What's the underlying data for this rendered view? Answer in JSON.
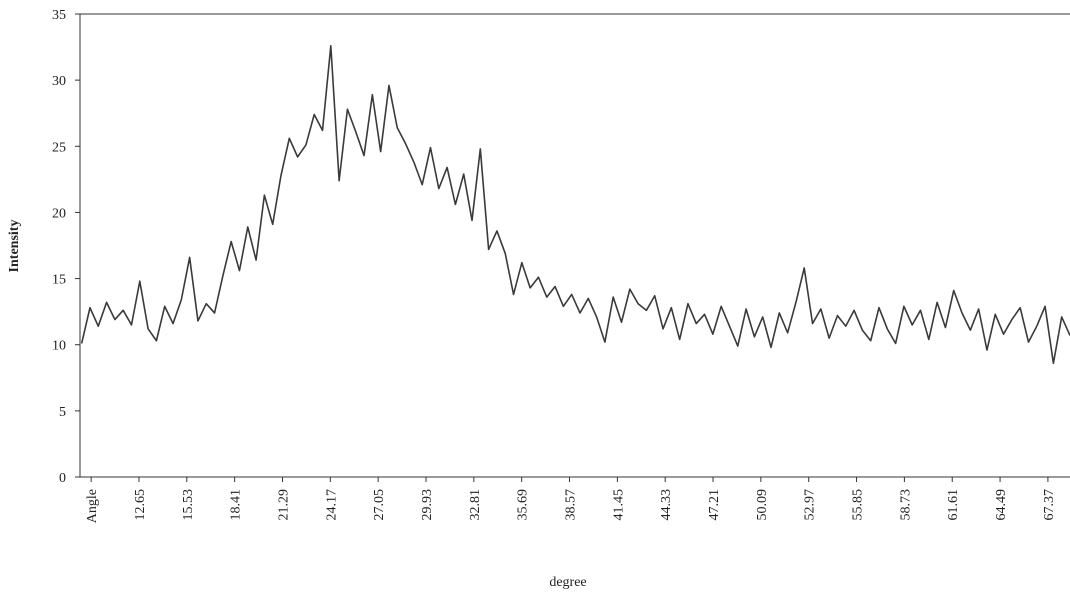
{
  "chart_data": {
    "type": "line",
    "y_label": "Intensity",
    "x_label": "degree",
    "color": "#3a3a3a",
    "xlim": [
      9.1,
      68.7
    ],
    "ylim": [
      0,
      35
    ],
    "xticks": [
      {
        "value": 9.77,
        "label": "Angle"
      },
      12.65,
      15.53,
      18.41,
      21.29,
      24.17,
      27.05,
      29.93,
      32.81,
      35.69,
      38.57,
      41.45,
      44.33,
      47.21,
      50.09,
      52.97,
      55.85,
      58.73,
      61.61,
      64.49,
      67.37
    ],
    "yticks": [
      0,
      5,
      10,
      15,
      20,
      25,
      30,
      35
    ],
    "x": [
      9.2,
      9.7,
      10.2,
      10.7,
      11.2,
      11.7,
      12.2,
      12.7,
      13.2,
      13.7,
      14.2,
      14.7,
      15.2,
      15.7,
      16.2,
      16.7,
      17.2,
      17.7,
      18.2,
      18.7,
      19.2,
      19.7,
      20.2,
      20.7,
      21.2,
      21.7,
      22.2,
      22.7,
      23.2,
      23.7,
      24.2,
      24.7,
      25.2,
      25.7,
      26.2,
      26.7,
      27.2,
      27.7,
      28.2,
      28.7,
      29.2,
      29.7,
      30.2,
      30.7,
      31.2,
      31.7,
      32.2,
      32.7,
      33.2,
      33.7,
      34.2,
      34.7,
      35.2,
      35.7,
      36.2,
      36.7,
      37.2,
      37.7,
      38.2,
      38.7,
      39.2,
      39.7,
      40.2,
      40.7,
      41.2,
      41.7,
      42.2,
      42.7,
      43.2,
      43.7,
      44.2,
      44.7,
      45.2,
      45.7,
      46.2,
      46.7,
      47.2,
      47.7,
      48.2,
      48.7,
      49.2,
      49.7,
      50.2,
      50.7,
      51.2,
      51.7,
      52.2,
      52.7,
      53.2,
      53.7,
      54.2,
      54.7,
      55.2,
      55.7,
      56.2,
      56.7,
      57.2,
      57.7,
      58.2,
      58.7,
      59.2,
      59.7,
      60.2,
      60.7,
      61.2,
      61.7,
      62.2,
      62.7,
      63.2,
      63.7,
      64.2,
      64.7,
      65.2,
      65.7,
      66.2,
      66.7,
      67.2,
      67.7,
      68.2,
      68.7
    ],
    "values": [
      10.1,
      12.8,
      11.4,
      13.2,
      11.9,
      12.6,
      11.5,
      14.8,
      11.2,
      10.3,
      12.9,
      11.6,
      13.4,
      16.6,
      11.8,
      13.1,
      12.4,
      15.2,
      17.8,
      15.6,
      18.9,
      16.4,
      21.3,
      19.1,
      22.8,
      25.6,
      24.2,
      25.1,
      27.4,
      26.2,
      32.6,
      22.4,
      27.8,
      26.1,
      24.3,
      28.9,
      24.6,
      29.6,
      26.4,
      25.2,
      23.8,
      22.1,
      24.9,
      21.8,
      23.4,
      20.6,
      22.9,
      19.4,
      24.8,
      17.2,
      18.6,
      16.9,
      13.8,
      16.2,
      14.3,
      15.1,
      13.6,
      14.4,
      12.9,
      13.8,
      12.4,
      13.5,
      12.1,
      10.2,
      13.6,
      11.7,
      14.2,
      13.1,
      12.6,
      13.7,
      11.2,
      12.8,
      10.4,
      13.1,
      11.6,
      12.3,
      10.8,
      12.9,
      11.4,
      9.9,
      12.7,
      10.6,
      12.1,
      9.8,
      12.4,
      10.9,
      13.2,
      15.8,
      11.6,
      12.7,
      10.5,
      12.2,
      11.4,
      12.6,
      11.1,
      10.3,
      12.8,
      11.2,
      10.1,
      12.9,
      11.5,
      12.6,
      10.4,
      13.2,
      11.3,
      14.1,
      12.4,
      11.1,
      12.7,
      9.6,
      12.3,
      10.8,
      11.9,
      12.8,
      10.2,
      11.4,
      12.9,
      8.6,
      12.1,
      10.7
    ]
  }
}
